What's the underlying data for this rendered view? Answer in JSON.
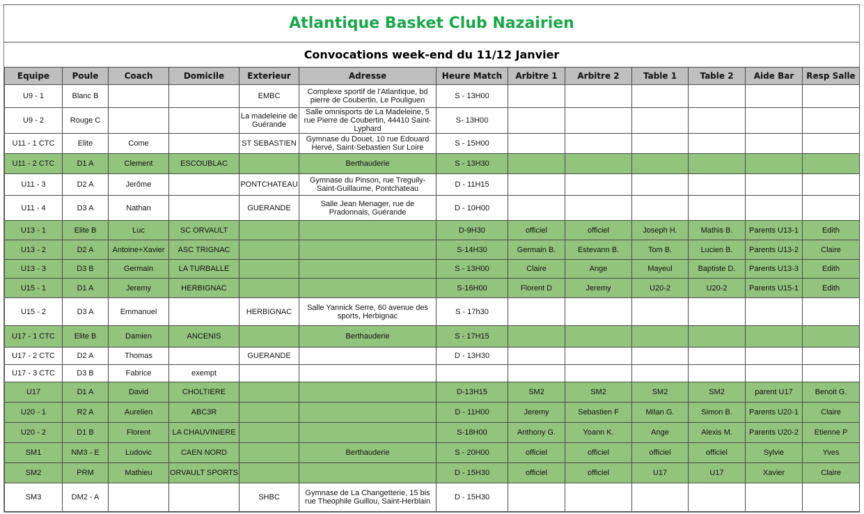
{
  "title": "Atlantique Basket Club Nazairien",
  "subtitle": "Convocations week-end du 11/12 Janvier",
  "colors": {
    "title": "#1aa64a",
    "home_row": "#93c47d",
    "header": "#bfbfbf"
  },
  "columns": [
    "Equipe",
    "Poule",
    "Coach",
    "Domicile",
    "Exterieur",
    "Adresse",
    "Heure Match",
    "Arbitre 1",
    "Arbitre 2",
    "Table 1",
    "Table 2",
    "Aide Bar",
    "Resp Salle"
  ],
  "rows": [
    {
      "home": false,
      "cells": [
        "U9 - 1",
        "Blanc B",
        "",
        "",
        "EMBC",
        "Complexe sportif de l'Atlantique, bd pierre de Coubertin, Le Pouliguen",
        "S - 13H00",
        "",
        "",
        "",
        "",
        "",
        ""
      ]
    },
    {
      "home": false,
      "cells": [
        "U9 - 2",
        "Rouge C",
        "",
        "",
        "La madeleine de Guérande",
        "Salle omnisports de La Madeleine, 5 rue Pierre de Coubertin, 44410 Saint-Lyphard",
        "S- 13H00",
        "",
        "",
        "",
        "",
        "",
        ""
      ]
    },
    {
      "home": false,
      "cells": [
        "U11 - 1 CTC",
        "Elite",
        "Come",
        "",
        "ST SEBASTIEN",
        "Gymnase du Douet, 10 rue Edouard Hervé, Saint-Sebastien Sur Loire",
        "S - 15H00",
        "",
        "",
        "",
        "",
        "",
        ""
      ]
    },
    {
      "home": true,
      "cells": [
        "U11 - 2 CTC",
        "D1 A",
        "Clement",
        "ESCOUBLAC",
        "",
        "Berthauderie",
        "S - 13H30",
        "",
        "",
        "",
        "",
        "",
        ""
      ]
    },
    {
      "home": false,
      "cells": [
        "U11 - 3",
        "D2 A",
        "Jerôme",
        "",
        "PONTCHATEAU",
        "Gymnase du Pinson, rue Treguily-Saint-Guillaume, Pontchateau",
        "D - 11H15",
        "",
        "",
        "",
        "",
        "",
        ""
      ]
    },
    {
      "home": false,
      "cells": [
        "U11 - 4",
        "D3 A",
        "Nathan",
        "",
        "GUERANDE",
        "Salle Jean Menager, rue de Pradonnais, Guérande",
        "D - 10H00",
        "",
        "",
        "",
        "",
        "",
        ""
      ]
    },
    {
      "home": true,
      "cells": [
        "U13 - 1",
        "Elite B",
        "Luc",
        "SC ORVAULT",
        "",
        "",
        "D-9H30",
        "officiel",
        "officiel",
        "Joseph H.",
        "Mathis B.",
        "Parents U13-1",
        "Edith"
      ]
    },
    {
      "home": true,
      "cells": [
        "U13 - 2",
        "D2 A",
        "Antoine+Xavier",
        "ASC TRIGNAC",
        "",
        "",
        "S-14H30",
        "Germain B.",
        "Estevann B.",
        "Tom B.",
        "Lucien B.",
        "Parents U13-2",
        "Claire"
      ]
    },
    {
      "home": true,
      "cells": [
        "U13 - 3",
        "D3 B",
        "Germain",
        "LA TURBALLE",
        "",
        "",
        "S - 13H00",
        "Claire",
        "Ange",
        "Mayeul",
        "Baptiste D.",
        "Parents U13-3",
        "Edith"
      ]
    },
    {
      "home": true,
      "cells": [
        "U15 - 1",
        "D1 A",
        "Jeremy",
        "HERBIGNAC",
        "",
        "",
        "S-16H00",
        "Florent D",
        "Jeremy",
        "U20-2",
        "U20-2",
        "Parents U15-1",
        "Edith"
      ]
    },
    {
      "home": false,
      "cells": [
        "U15 - 2",
        "D3 A",
        "Emmanuel",
        "",
        "HERBIGNAC",
        "Salle Yannick Serre, 60 avenue des sports, Herbignac",
        "S - 17h30",
        "",
        "",
        "",
        "",
        "",
        ""
      ]
    },
    {
      "home": true,
      "cells": [
        "U17 - 1 CTC",
        "Elite B",
        "Damien",
        "ANCENIS",
        "",
        "Berthauderie",
        "S - 17H15",
        "",
        "",
        "",
        "",
        "",
        ""
      ]
    },
    {
      "home": false,
      "cells": [
        "U17 - 2 CTC",
        "D2 A",
        "Thomas",
        "",
        "GUERANDE",
        "",
        "D - 13H30",
        "",
        "",
        "",
        "",
        "",
        ""
      ]
    },
    {
      "home": false,
      "cells": [
        "U17 - 3 CTC",
        "D3 B",
        "Fabrice",
        "exempt",
        "",
        "",
        "",
        "",
        "",
        "",
        "",
        "",
        ""
      ]
    },
    {
      "home": true,
      "cells": [
        "U17",
        "D1 A",
        "David",
        "CHOLTIERE",
        "",
        "",
        "D-13H15",
        "SM2",
        "SM2",
        "SM2",
        "SM2",
        "parent U17",
        "Benoit G."
      ]
    },
    {
      "home": true,
      "cells": [
        "U20 - 1",
        "R2 A",
        "Aurelien",
        "ABC3R",
        "",
        "",
        "D - 11H00",
        "Jeremy",
        "Sebastien F",
        "Milan G.",
        "Simon B.",
        "Parents U20-1",
        "Claire"
      ]
    },
    {
      "home": true,
      "cells": [
        "U20 - 2",
        "D1 B",
        "Florent",
        "LA CHAUVINIERE",
        "",
        "",
        "S-18H00",
        "Anthony G.",
        "Yoann K.",
        "Ange",
        "Alexis M.",
        "Parents U20-2",
        "Etienne P"
      ]
    },
    {
      "home": true,
      "cells": [
        "SM1",
        "NM3 - E",
        "Ludovic",
        "CAEN NORD",
        "",
        "Berthauderie",
        "S - 20H00",
        "officiel",
        "officiel",
        "officiel",
        "officiel",
        "Sylvie",
        "Yves"
      ]
    },
    {
      "home": true,
      "cells": [
        "SM2",
        "PRM",
        "Mathieu",
        "ORVAULT SPORTS",
        "",
        "",
        "D - 15H30",
        "officiel",
        "officiel",
        "U17",
        "U17",
        "Xavier",
        "Claire"
      ]
    },
    {
      "home": false,
      "cells": [
        "SM3",
        "DM2 - A",
        "",
        "",
        "SHBC",
        "Gymnase de La Changetterie, 15 bis rue Theophile Guillou, Saint-Herblain",
        "D - 15H30",
        "",
        "",
        "",
        "",
        "",
        ""
      ]
    }
  ]
}
